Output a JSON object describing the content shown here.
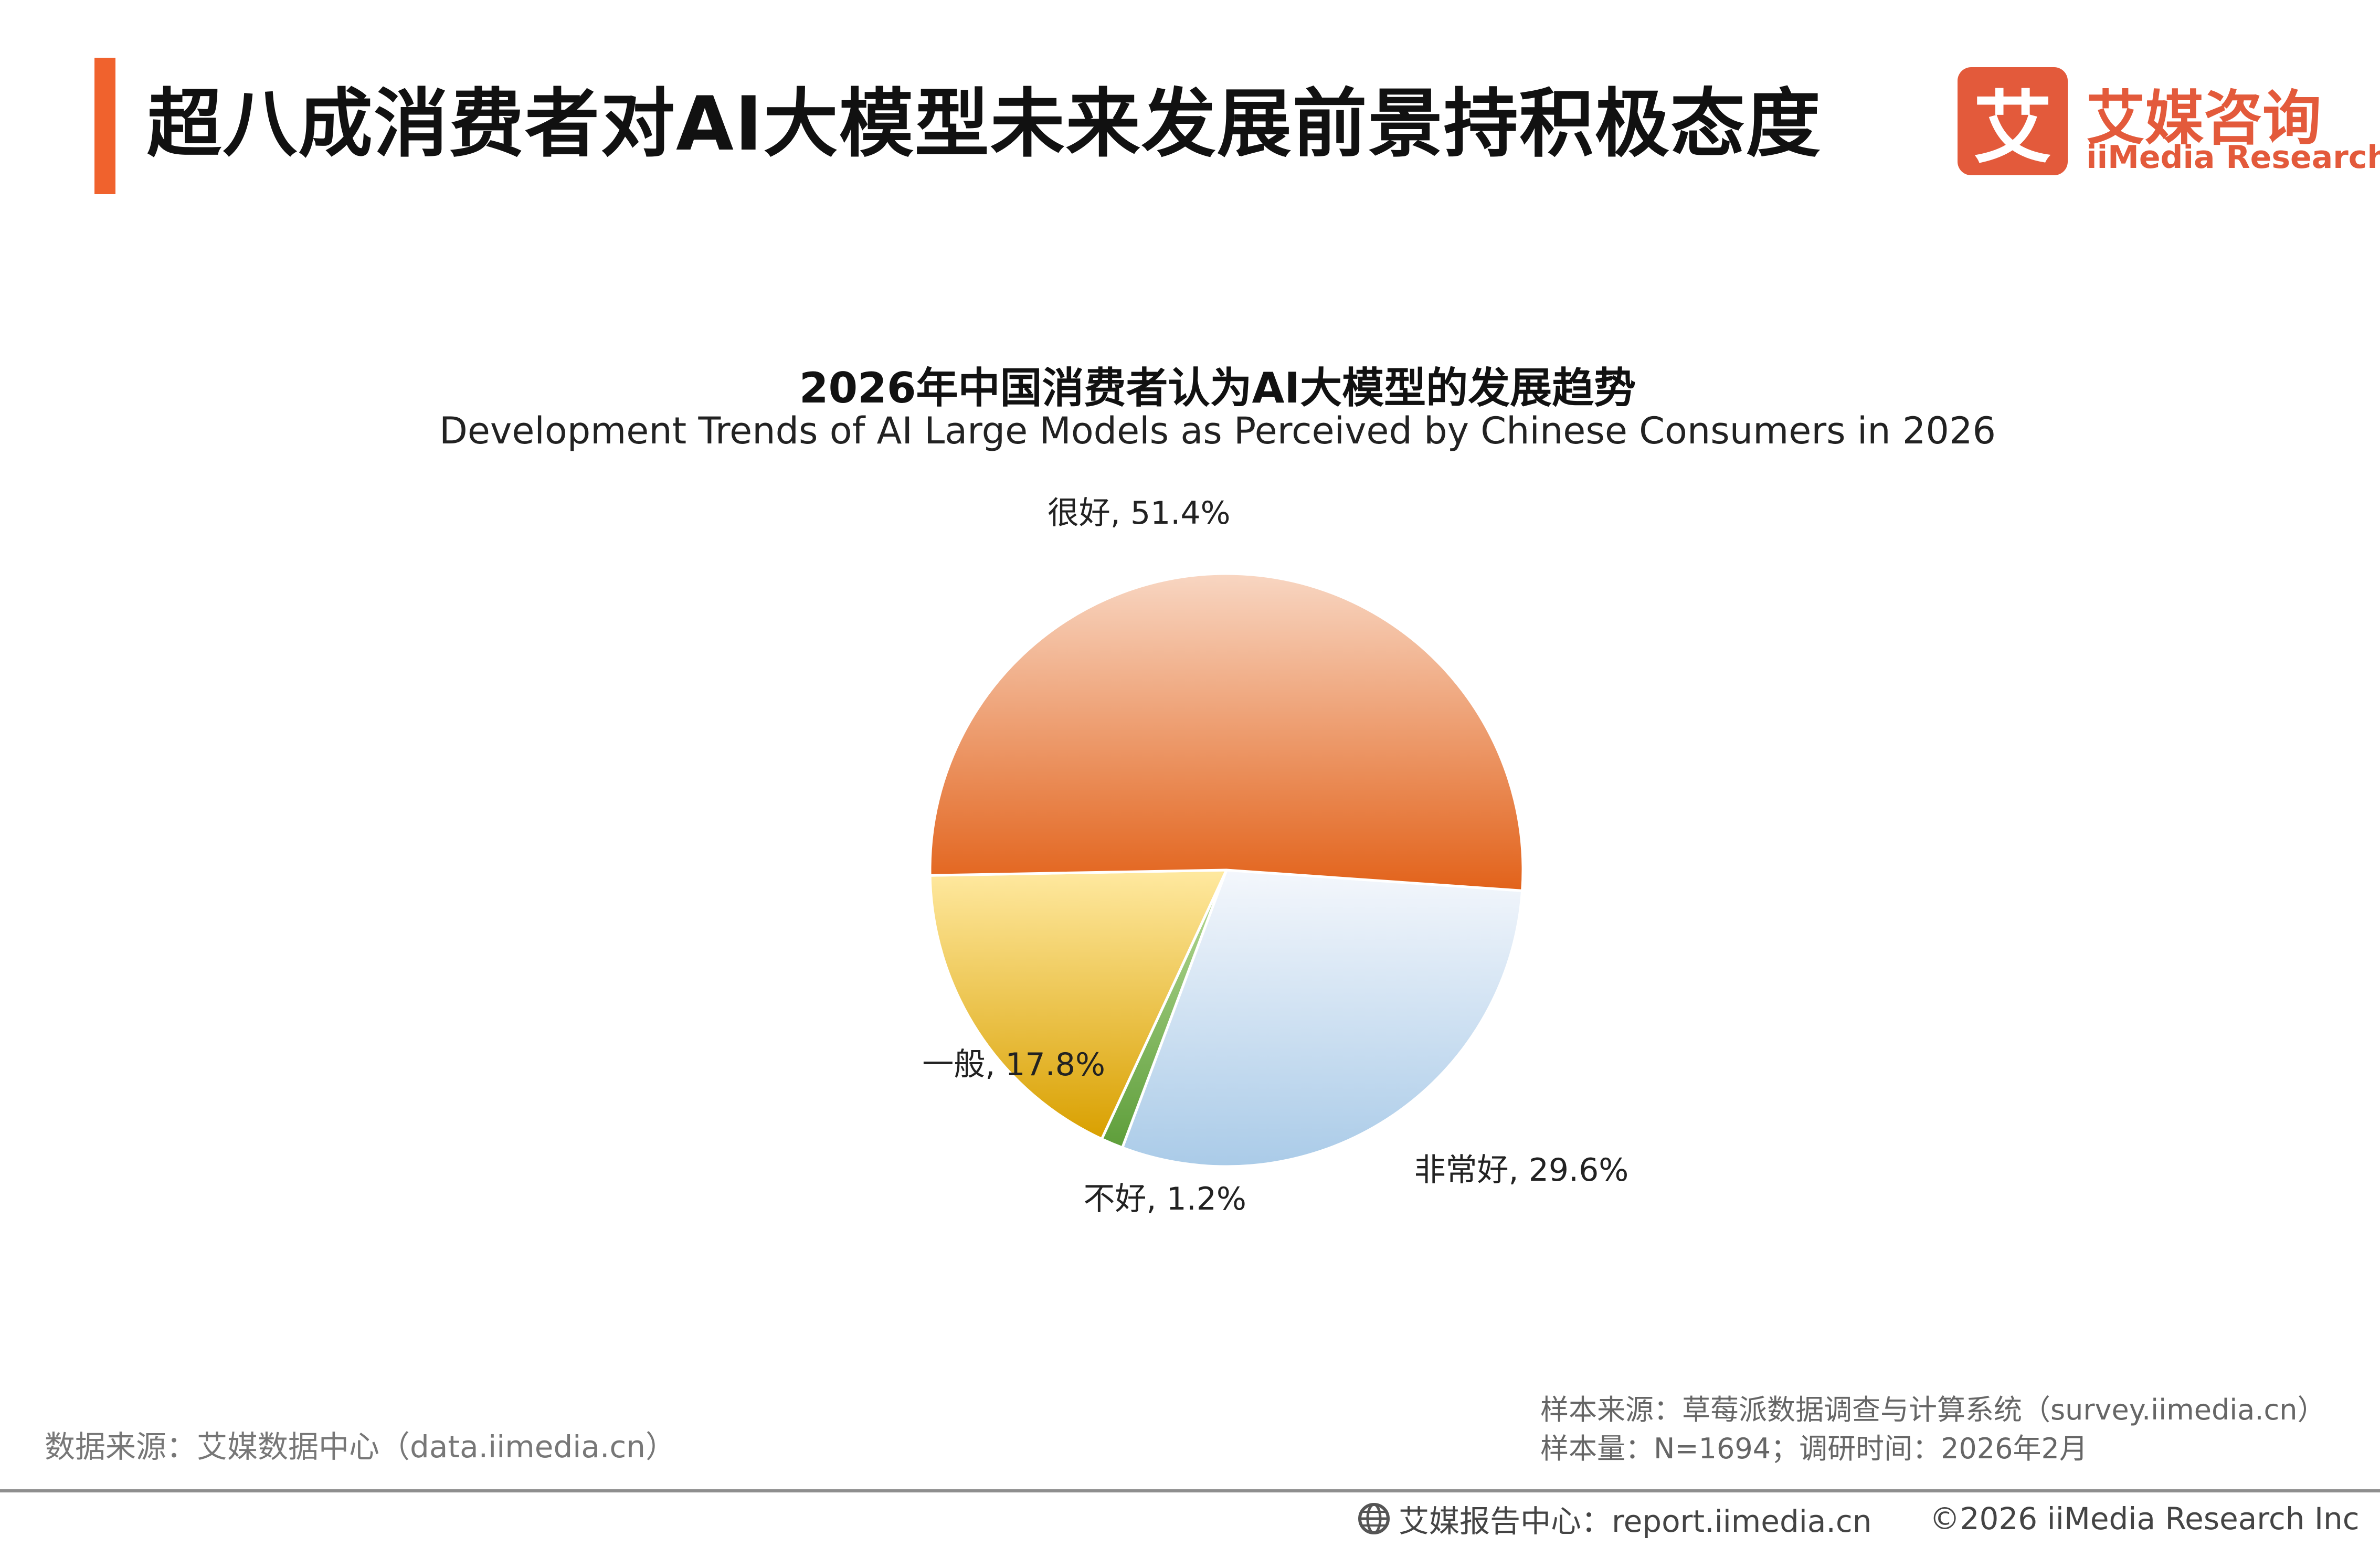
{
  "header": {
    "title": "超八成消费者对AI大模型未来发展前景持积极态度",
    "logo_mark": "艾",
    "logo_cn": "艾媒咨询",
    "logo_en": "iiMedia Research"
  },
  "chart_data": {
    "type": "pie",
    "title": "2026年中国消费者认为AI大模型的发展趋势",
    "subtitle": "Development Trends of AI Large Models as Perceived by Chinese Consumers in 2026",
    "slices": [
      {
        "label": "很好",
        "value": 51.4,
        "display": "很好, 51.4%",
        "color_light": "#f8d6c2",
        "color_dark": "#e2621a"
      },
      {
        "label": "一般",
        "value": 17.8,
        "display": "一般, 17.8%",
        "color_light": "#ffe9a0",
        "color_dark": "#d9a000"
      },
      {
        "label": "不好",
        "value": 1.2,
        "display": "不好, 1.2%",
        "color_light": "#b9dc9a",
        "color_dark": "#5e9e3a"
      },
      {
        "label": "非常好",
        "value": 29.6,
        "display": "非常好, 29.6%",
        "color_light": "#f4f7fc",
        "color_dark": "#aacbe8"
      }
    ]
  },
  "footer": {
    "source_left": "数据来源：艾媒数据中心（data.iimedia.cn）",
    "sample_source": "样本来源：草莓派数据调查与计算系统（survey.iimedia.cn）",
    "sample_size": "样本量：N=1694；调研时间：2026年2月",
    "report_center": "艾媒报告中心：report.iimedia.cn",
    "copyright": "©2026  iiMedia Research  Inc"
  }
}
